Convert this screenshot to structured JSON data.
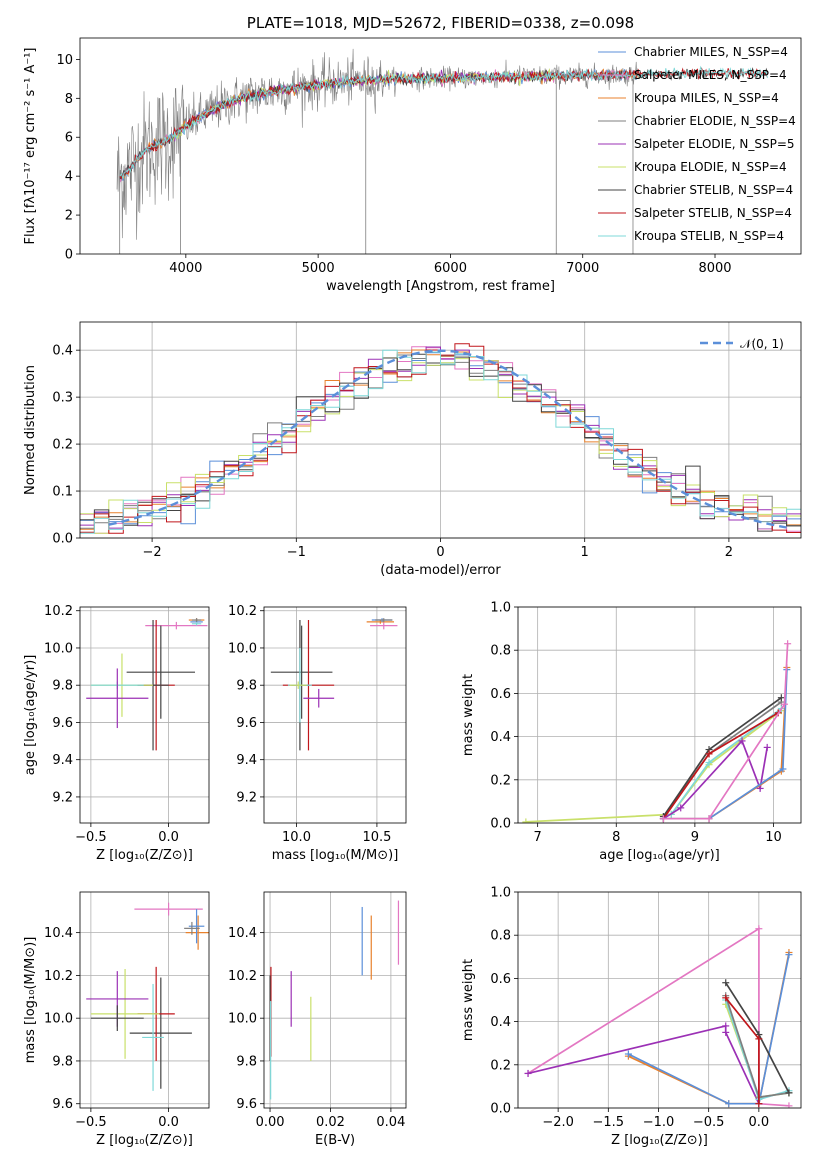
{
  "colors": {
    "blue": "#5b8fd9",
    "pink": "#e377c2",
    "orange": "#e8812d",
    "gray": "#7f7f7f",
    "purple": "#9b30b5",
    "yellowgreen": "#c9e06a",
    "dark": "#444444",
    "red": "#c0161b",
    "cyan": "#7fd8d8"
  },
  "chart_data": [
    {
      "id": "spectrum",
      "type": "line",
      "title": "PLATE=1018, MJD=52672, FIBERID=0338, z=0.098",
      "xlabel": "wavelength [Angstrom, rest frame]",
      "ylabel": "Flux [fλ10⁻¹⁷ erg cm⁻² s⁻¹ A⁻¹]",
      "xlim": [
        3200,
        8650
      ],
      "ylim": [
        0,
        11.1
      ],
      "xticks": [
        4000,
        5000,
        6000,
        7000,
        8000
      ],
      "yticks": [
        0,
        2,
        4,
        6,
        8,
        10
      ],
      "legend_position": "upper-right",
      "series": [
        {
          "name": "Chabrier MILES, N_SSP=4",
          "color": "blue",
          "x_range": [
            3500,
            7420
          ]
        },
        {
          "name": "Salpeter MILES, N_SSP=4",
          "color": "pink",
          "x_range": [
            3500,
            7420
          ]
        },
        {
          "name": "Kroupa MILES, N_SSP=4",
          "color": "orange",
          "x_range": [
            3500,
            7420
          ]
        },
        {
          "name": "Chabrier ELODIE, N_SSP=4",
          "color": "gray",
          "x_range": [
            3500,
            7420
          ]
        },
        {
          "name": "Salpeter ELODIE, N_SSP=5",
          "color": "purple",
          "x_range": [
            3900,
            6800
          ]
        },
        {
          "name": "Kroupa ELODIE, N_SSP=4",
          "color": "yellowgreen",
          "x_range": [
            3900,
            6800
          ]
        },
        {
          "name": "Chabrier STELIB, N_SSP=4",
          "color": "dark",
          "x_range": [
            3500,
            8400
          ]
        },
        {
          "name": "Salpeter STELIB, N_SSP=4",
          "color": "red",
          "x_range": [
            3500,
            8400
          ]
        },
        {
          "name": "Kroupa STELIB, N_SSP=4",
          "color": "cyan",
          "x_range": [
            3500,
            8400
          ]
        }
      ],
      "envelope": {
        "x": [
          3480,
          3550,
          3650,
          3750,
          3850,
          3950,
          4050,
          4200,
          4400,
          4600,
          4800,
          5000,
          5300,
          5600,
          6000,
          6400,
          6800,
          7200,
          7600,
          8000,
          8400
        ],
        "y": [
          3.8,
          4.2,
          5.0,
          5.6,
          5.8,
          6.3,
          6.8,
          7.4,
          8.0,
          8.3,
          8.5,
          8.7,
          8.9,
          9.0,
          9.05,
          9.1,
          9.15,
          9.2,
          9.25,
          9.3,
          9.3
        ]
      }
    },
    {
      "id": "residuals",
      "type": "line",
      "xlabel": "(data-model)/error",
      "ylabel": "Normed distribution",
      "xlim": [
        -2.5,
        2.5
      ],
      "ylim": [
        0,
        0.46
      ],
      "xticks": [
        -2,
        -1,
        0,
        1,
        2
      ],
      "xtick_labels": [
        "−2",
        "−1",
        "0",
        "1",
        "2"
      ],
      "yticks": [
        0.0,
        0.1,
        0.2,
        0.3,
        0.4
      ],
      "ytick_labels": [
        "0.0",
        "0.1",
        "0.2",
        "0.3",
        "0.4"
      ],
      "legend": "𝒩(0, 1)",
      "legend_position": "upper-right",
      "reference_curve": "gaussian(0,1)",
      "bin_width": 0.1,
      "histogram_colors": [
        "blue",
        "pink",
        "orange",
        "gray",
        "purple",
        "yellowgreen",
        "dark",
        "red",
        "cyan"
      ]
    },
    {
      "id": "age-vs-Z",
      "type": "scatter",
      "xlabel": "Z [log₁₀(Z/Z⊙)]",
      "ylabel": "age  [log₁₀(age/yr)]",
      "xlim": [
        -0.57,
        0.26
      ],
      "ylim": [
        9.06,
        10.22
      ],
      "xticks": [
        -0.5,
        0.0
      ],
      "xtick_labels": [
        "−0.5",
        "0.0"
      ],
      "yticks": [
        9.2,
        9.4,
        9.6,
        9.8,
        10.0,
        10.2
      ],
      "ytick_labels": [
        "9.2",
        "9.4",
        "9.6",
        "9.8",
        "10.0",
        "10.2"
      ],
      "errorbars": [
        {
          "color": "pink",
          "x": 0.05,
          "xerr": 0.2,
          "y": 10.12,
          "yerr": 0.02
        },
        {
          "color": "orange",
          "x": 0.18,
          "xerr": 0.05,
          "y": 10.15,
          "yerr": 0.01
        },
        {
          "color": "blue",
          "x": 0.18,
          "xerr": 0.04,
          "y": 10.14,
          "yerr": 0.01
        },
        {
          "color": "cyan",
          "x": 0.18,
          "xerr": 0.03,
          "y": 10.13,
          "yerr": 0.01
        },
        {
          "color": "gray",
          "x": 0.18,
          "xerr": 0.03,
          "y": 10.15,
          "yerr": 0.01
        },
        {
          "color": "dark",
          "x": -0.05,
          "xerr": 0.22,
          "y": 9.87,
          "yerr": 0.25
        },
        {
          "color": "red",
          "x": -0.08,
          "xerr": 0.12,
          "y": 9.8,
          "yerr": 0.35
        },
        {
          "color": "dark",
          "x": -0.1,
          "xerr": 0.1,
          "y": 9.8,
          "yerr": 0.35
        },
        {
          "color": "yellowgreen",
          "x": -0.3,
          "xerr": 0.2,
          "y": 9.8,
          "yerr": 0.17
        },
        {
          "color": "cyan",
          "x": -0.33,
          "xerr": 0.17,
          "y": 9.8,
          "yerr": 0.02
        },
        {
          "color": "purple",
          "x": -0.33,
          "xerr": 0.2,
          "y": 9.73,
          "yerr": 0.16
        }
      ]
    },
    {
      "id": "age-vs-mass",
      "type": "scatter",
      "xlabel": "mass [log₁₀(M/M⊙)]",
      "xlim": [
        9.75,
        10.58
      ],
      "ylim": [
        9.06,
        10.22
      ],
      "xticks": [
        9.94,
        10.41
      ],
      "xtick_labels": [
        "10.0",
        "10.5"
      ],
      "yticks": [
        9.2,
        9.4,
        9.6,
        9.8,
        10.0,
        10.2
      ],
      "ytick_labels": [
        "9.2",
        "9.4",
        "9.6",
        "9.8",
        "10.0",
        "10.2"
      ],
      "errorbars": [
        {
          "color": "pink",
          "x": 10.45,
          "xerr": 0.08,
          "y": 10.12,
          "yerr": 0.02
        },
        {
          "color": "orange",
          "x": 10.43,
          "xerr": 0.08,
          "y": 10.14,
          "yerr": 0.01
        },
        {
          "color": "blue",
          "x": 10.44,
          "xerr": 0.06,
          "y": 10.15,
          "yerr": 0.01
        },
        {
          "color": "gray",
          "x": 10.45,
          "xerr": 0.05,
          "y": 10.15,
          "yerr": 0.01
        },
        {
          "color": "dark",
          "x": 9.97,
          "xerr": 0.18,
          "y": 9.87,
          "yerr": 0.25
        },
        {
          "color": "red",
          "x": 10.01,
          "xerr": 0.15,
          "y": 9.8,
          "yerr": 0.35
        },
        {
          "color": "dark",
          "x": 9.96,
          "xerr": 0.05,
          "y": 9.8,
          "yerr": 0.35
        },
        {
          "color": "cyan",
          "x": 9.96,
          "xerr": 0.07,
          "y": 9.8,
          "yerr": 0.2
        },
        {
          "color": "purple",
          "x": 10.07,
          "xerr": 0.09,
          "y": 9.73,
          "yerr": 0.05
        },
        {
          "color": "yellowgreen",
          "x": 9.95,
          "xerr": 0.05,
          "y": 9.8,
          "yerr": 0.02
        }
      ]
    },
    {
      "id": "mass-weight-vs-age",
      "type": "line",
      "xlabel": "age  [log₁₀(age/yr)]",
      "ylabel": "mass weight",
      "xlim": [
        6.75,
        10.35
      ],
      "ylim": [
        0,
        1.0
      ],
      "xticks": [
        7,
        8,
        9,
        10
      ],
      "yticks": [
        0.0,
        0.2,
        0.4,
        0.6,
        0.8,
        1.0
      ],
      "ytick_labels": [
        "0.0",
        "0.2",
        "0.4",
        "0.6",
        "0.8",
        "1.0"
      ],
      "series": [
        {
          "color": "yellowgreen",
          "x": [
            6.85,
            8.7,
            9.18,
            10.1
          ],
          "y": [
            0.005,
            0.04,
            0.27,
            0.52
          ]
        },
        {
          "color": "cyan",
          "x": [
            8.7,
            9.18,
            10.1
          ],
          "y": [
            0.04,
            0.28,
            0.53
          ]
        },
        {
          "color": "gray",
          "x": [
            8.6,
            9.18,
            10.1
          ],
          "y": [
            0.03,
            0.32,
            0.56
          ]
        },
        {
          "color": "dark",
          "x": [
            8.6,
            9.18,
            10.1
          ],
          "y": [
            0.03,
            0.34,
            0.58
          ]
        },
        {
          "color": "red",
          "x": [
            8.6,
            9.18,
            10.06
          ],
          "y": [
            0.02,
            0.32,
            0.51
          ]
        },
        {
          "color": "purple",
          "x": [
            8.6,
            8.82,
            9.6,
            9.83,
            9.92
          ],
          "y": [
            0.02,
            0.07,
            0.38,
            0.16,
            0.35
          ]
        },
        {
          "color": "orange",
          "x": [
            8.6,
            9.18,
            10.1,
            10.17
          ],
          "y": [
            0.02,
            0.02,
            0.24,
            0.72
          ]
        },
        {
          "color": "blue",
          "x": [
            8.6,
            9.18,
            10.12,
            10.17
          ],
          "y": [
            0.02,
            0.02,
            0.25,
            0.71
          ]
        },
        {
          "color": "pink",
          "x": [
            8.6,
            9.18,
            10.14,
            10.18
          ],
          "y": [
            0.02,
            0.02,
            0.55,
            0.83
          ]
        }
      ]
    },
    {
      "id": "mass-vs-Z",
      "type": "scatter",
      "xlabel": "Z [log₁₀(Z/Z⊙)]",
      "ylabel": "mass [log₁₀(M/M⊙)]",
      "xlim": [
        -0.57,
        0.26
      ],
      "ylim": [
        9.58,
        10.59
      ],
      "xticks": [
        -0.5,
        0.0
      ],
      "xtick_labels": [
        "−0.5",
        "0.0"
      ],
      "yticks": [
        9.6,
        9.8,
        10.0,
        10.2,
        10.4
      ],
      "ytick_labels": [
        "9.6",
        "9.8",
        "10.0",
        "10.2",
        "10.4"
      ],
      "errorbars": [
        {
          "color": "pink",
          "x": 0.0,
          "xerr": 0.22,
          "y": 10.51,
          "yerr": 0.03
        },
        {
          "color": "orange",
          "x": 0.19,
          "xerr": 0.08,
          "y": 10.4,
          "yerr": 0.08
        },
        {
          "color": "blue",
          "x": 0.18,
          "xerr": 0.05,
          "y": 10.43,
          "yerr": 0.08
        },
        {
          "color": "gray",
          "x": 0.15,
          "xerr": 0.05,
          "y": 10.42,
          "yerr": 0.03
        },
        {
          "color": "dark",
          "x": -0.05,
          "xerr": 0.2,
          "y": 9.93,
          "yerr": 0.26
        },
        {
          "color": "red",
          "x": -0.08,
          "xerr": 0.12,
          "y": 10.02,
          "yerr": 0.22
        },
        {
          "color": "cyan",
          "x": -0.1,
          "xerr": 0.07,
          "y": 9.91,
          "yerr": 0.25
        },
        {
          "color": "yellowgreen",
          "x": -0.28,
          "xerr": 0.22,
          "y": 10.02,
          "yerr": 0.21
        },
        {
          "color": "purple",
          "x": -0.33,
          "xerr": 0.2,
          "y": 10.09,
          "yerr": 0.13
        },
        {
          "color": "dark",
          "x": -0.33,
          "xerr": 0.17,
          "y": 10.0,
          "yerr": 0.06
        }
      ]
    },
    {
      "id": "mass-vs-EBV",
      "type": "scatter",
      "xlabel": "E(B-V)",
      "xlim": [
        -0.002,
        0.045
      ],
      "ylim": [
        9.58,
        10.59
      ],
      "xticks": [
        0.0,
        0.02,
        0.04
      ],
      "xtick_labels": [
        "0.00",
        "0.02",
        "0.04"
      ],
      "yticks": [
        9.6,
        9.8,
        10.0,
        10.2,
        10.4
      ],
      "ytick_labels": [
        "9.6",
        "9.8",
        "10.0",
        "10.2",
        "10.4"
      ],
      "errorbars": [
        {
          "color": "pink",
          "x": 0.0425,
          "xerr": 0,
          "y": 10.4,
          "yerr": 0.15
        },
        {
          "color": "orange",
          "x": 0.0335,
          "xerr": 0,
          "y": 10.33,
          "yerr": 0.15
        },
        {
          "color": "blue",
          "x": 0.0305,
          "xerr": 0,
          "y": 10.36,
          "yerr": 0.16
        },
        {
          "color": "yellowgreen",
          "x": 0.0135,
          "xerr": 0,
          "y": 9.95,
          "yerr": 0.15
        },
        {
          "color": "purple",
          "x": 0.007,
          "xerr": 0,
          "y": 10.09,
          "yerr": 0.13
        },
        {
          "color": "red",
          "x": 0.0003,
          "xerr": 0,
          "y": 10.03,
          "yerr": 0.21
        },
        {
          "color": "dark",
          "x": 0.0,
          "xerr": 0,
          "y": 10.0,
          "yerr": 0.2
        },
        {
          "color": "cyan",
          "x": 0.0002,
          "xerr": 0,
          "y": 9.85,
          "yerr": 0.23
        }
      ]
    },
    {
      "id": "mass-weight-vs-Z",
      "type": "line",
      "xlabel": "Z [log₁₀(Z/Z⊙)]",
      "ylabel": "mass weight",
      "xlim": [
        -2.4,
        0.42
      ],
      "ylim": [
        0,
        1.0
      ],
      "xticks": [
        -2.0,
        -1.5,
        -1.0,
        -0.5,
        0.0
      ],
      "xtick_labels": [
        "−2.0",
        "−1.5",
        "−1.0",
        "−0.5",
        "0.0"
      ],
      "yticks": [
        0.0,
        0.2,
        0.4,
        0.6,
        0.8,
        1.0
      ],
      "ytick_labels": [
        "0.0",
        "0.2",
        "0.4",
        "0.6",
        "0.8",
        "1.0"
      ],
      "series": [
        {
          "color": "pink",
          "x": [
            -2.3,
            0.0,
            0.0,
            0.3
          ],
          "y": [
            0.16,
            0.83,
            0.02,
            0.01
          ]
        },
        {
          "color": "purple",
          "x": [
            -2.3,
            -0.33,
            -0.33,
            0.0
          ],
          "y": [
            0.16,
            0.38,
            0.35,
            0.02
          ]
        },
        {
          "color": "orange",
          "x": [
            -1.3,
            -0.3,
            0.0,
            0.3
          ],
          "y": [
            0.24,
            0.02,
            0.02,
            0.72
          ]
        },
        {
          "color": "blue",
          "x": [
            -1.3,
            -0.3,
            0.0,
            0.3
          ],
          "y": [
            0.25,
            0.02,
            0.02,
            0.71
          ]
        },
        {
          "color": "yellowgreen",
          "x": [
            -0.33,
            0.0,
            0.3
          ],
          "y": [
            0.48,
            0.05,
            0.07
          ]
        },
        {
          "color": "cyan",
          "x": [
            -0.33,
            0.0,
            0.3
          ],
          "y": [
            0.5,
            0.04,
            0.08
          ]
        },
        {
          "color": "gray",
          "x": [
            -0.33,
            0.0,
            0.3
          ],
          "y": [
            0.52,
            0.05,
            0.07
          ]
        },
        {
          "color": "dark",
          "x": [
            -0.33,
            0.0,
            0.3
          ],
          "y": [
            0.58,
            0.34,
            0.07
          ]
        },
        {
          "color": "red",
          "x": [
            -0.33,
            0.0,
            0.0
          ],
          "y": [
            0.51,
            0.32,
            0.02
          ]
        }
      ]
    }
  ]
}
